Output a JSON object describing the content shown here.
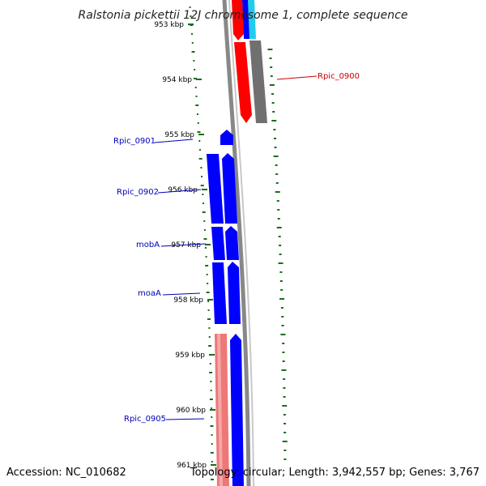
{
  "title": "Ralstonia pickettii 12J chromosome 1, complete sequence",
  "footer": {
    "accession": "Accession: NC_010682",
    "summary": "Topology: circular; Length: 3,942,557 bp; Genes: 3,767"
  },
  "colors": {
    "forward_cds": "#0000ff",
    "reverse_cds": "#ff0000",
    "pseudo": "#ee7777",
    "grey_feature": "#707070",
    "cyan_feature": "#22ccee",
    "backbone": "#909090",
    "gc_ticks": "#1a6e1a",
    "label_blue": "#0000bb",
    "label_red": "#cc0000"
  },
  "ruler": [
    "953 kbp",
    "954 kbp",
    "955 kbp",
    "956 kbp",
    "957 kbp",
    "958 kbp",
    "959 kbp",
    "960 kbp",
    "961 kbp"
  ],
  "gene_labels": [
    {
      "text": "Rpic_0900",
      "color": "#cc0000"
    },
    {
      "text": "Rpic_0901",
      "color": "#0000bb"
    },
    {
      "text": "Rpic_0902",
      "color": "#0000bb"
    },
    {
      "text": "mobA",
      "color": "#0000bb"
    },
    {
      "text": "moaA",
      "color": "#0000bb"
    },
    {
      "text": "Rpic_0905",
      "color": "#0000bb"
    }
  ]
}
